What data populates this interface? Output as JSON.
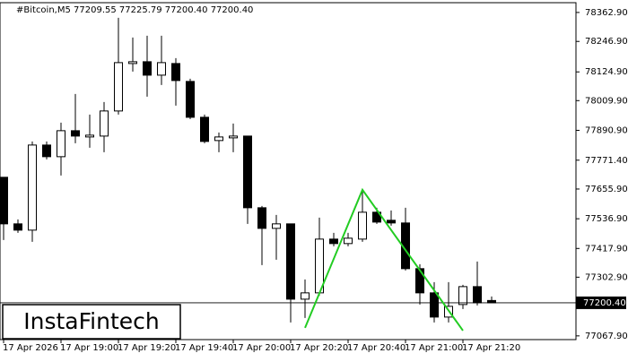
{
  "header": "#Bitcoin,M5  77209.55 77225.79 77200.40 77200.40",
  "logo": "InstaFintech",
  "chart_data": {
    "type": "candlestick",
    "open": [
      77702.9,
      77516.4,
      77491.3,
      77832,
      77785.4,
      77889.4,
      77864.3,
      77867.9,
      77968.4,
      78158.4,
      78165.6,
      78111.8,
      78158.4,
      78086.7,
      77943.2,
      77850,
      77860.7,
      77867.9,
      77580.9,
      77498.4,
      77516.4,
      77214.9,
      77240.1,
      77455.4,
      77437.5,
      77455.4,
      77563,
      77530.7,
      77520,
      77337,
      77240.1,
      77143.2,
      77193.4,
      77265.1,
      77209.55
    ],
    "high": [
      77702.9,
      77534.3,
      77846.4,
      77846.4,
      77921.7,
      78036.5,
      77954,
      78004.2,
      78341.4,
      78262.5,
      78269.6,
      78269.6,
      78180,
      78097.5,
      77954,
      77882.2,
      77918.1,
      77867.9,
      77588.1,
      77552.2,
      77516.4,
      77294,
      77541.5,
      77480.5,
      77480.5,
      77652.7,
      77580.9,
      77570.2,
      77580.9,
      77355,
      77283.2,
      77283.2,
      77272.4,
      77365.7,
      77225.79
    ],
    "low": [
      77451.8,
      77480.5,
      77444.6,
      77774.7,
      77710.1,
      77839.2,
      77821.3,
      77803.3,
      77954,
      78126.2,
      78025.7,
      78072.3,
      77989.9,
      77936,
      77839.2,
      77803.3,
      77803.3,
      77516.4,
      77351.4,
      77372.9,
      77121.5,
      77139.6,
      77229.3,
      77426.7,
      77426.7,
      77444.6,
      77516.4,
      77509.2,
      77329.8,
      77193.4,
      77121.5,
      77121.5,
      77175.5,
      77189.8,
      77200.4
    ],
    "close": [
      77516.4,
      77491.3,
      77832,
      77785.4,
      77889.4,
      77867.9,
      77871.5,
      77968.4,
      78162,
      78165.6,
      78111.8,
      78162,
      78090.3,
      77943.2,
      77846.4,
      77864.3,
      77867.9,
      77580.9,
      77498.4,
      77516.4,
      77214.9,
      77240.1,
      77455.4,
      77437.5,
      77459,
      77563,
      77523.5,
      77520,
      77337,
      77240.1,
      77143.2,
      77186.2,
      77265.1,
      77200.6,
      77200.4
    ],
    "ylim": [
      77053,
      78402
    ],
    "yticks": [
      {
        "value": 78362.9,
        "label": "78362.90"
      },
      {
        "value": 78246.9,
        "label": "78246.90"
      },
      {
        "value": 78124.9,
        "label": "78124.90"
      },
      {
        "value": 78009.9,
        "label": "78009.90"
      },
      {
        "value": 77890.9,
        "label": "77890.90"
      },
      {
        "value": 77771.4,
        "label": "77771.40"
      },
      {
        "value": 77655.9,
        "label": "77655.90"
      },
      {
        "value": 77536.9,
        "label": "77536.90"
      },
      {
        "value": 77417.9,
        "label": "77417.90"
      },
      {
        "value": 77302.9,
        "label": "77302.90"
      },
      {
        "value": 77067.9,
        "label": "77067.90"
      }
    ],
    "xticks": [
      {
        "value": 0,
        "label": "17 Apr 2026"
      },
      {
        "value": 4,
        "label": "17 Apr 19:00"
      },
      {
        "value": 8,
        "label": "17 Apr 19:20"
      },
      {
        "value": 12,
        "label": "17 Apr 19:40"
      },
      {
        "value": 16,
        "label": "17 Apr 20:00"
      },
      {
        "value": 20,
        "label": "17 Apr 20:20"
      },
      {
        "value": 24,
        "label": "17 Apr 20:40"
      },
      {
        "value": 28,
        "label": "17 Apr 21:00"
      },
      {
        "value": 32,
        "label": "17 Apr 21:20"
      }
    ],
    "last_price": {
      "value": 77200.4,
      "label": "77200.40"
    },
    "pattern": {
      "color": "#22cc22",
      "x": [
        21,
        25,
        32
      ],
      "y": [
        77100,
        77652.7,
        77089.2
      ]
    }
  }
}
